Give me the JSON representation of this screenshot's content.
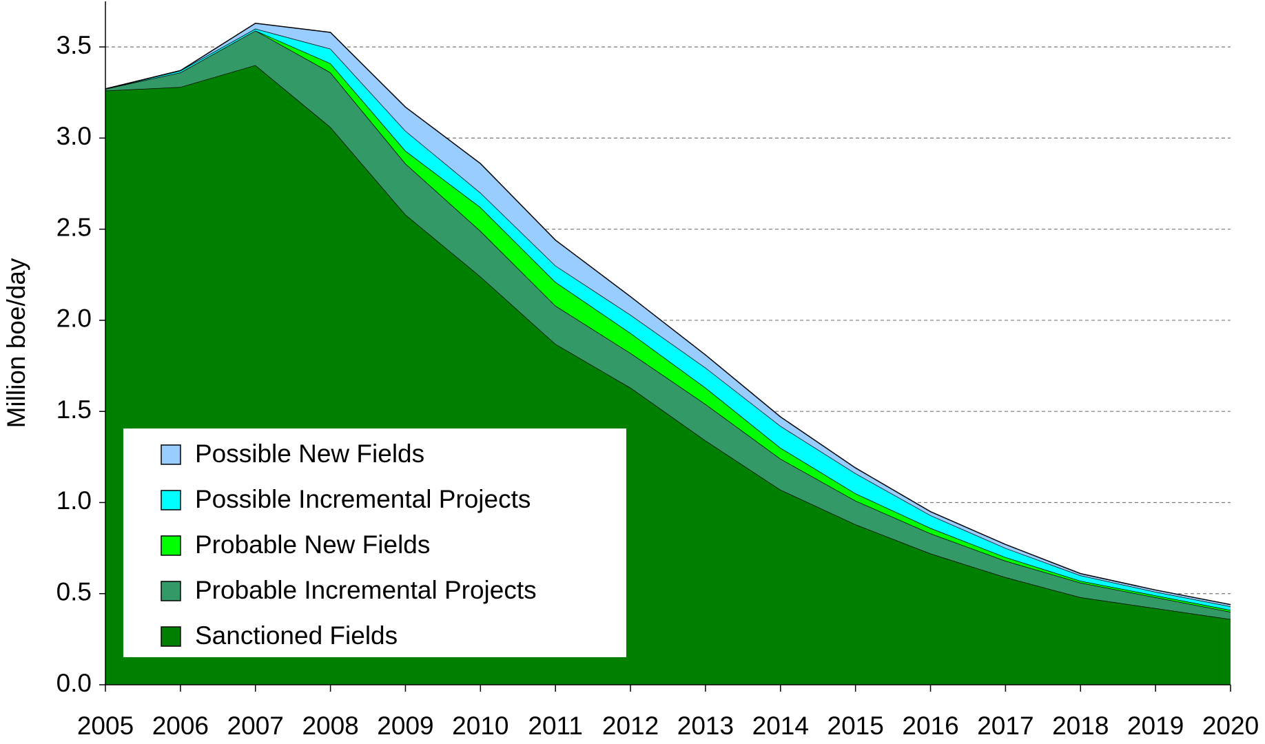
{
  "chart_data": {
    "type": "stacked_area",
    "y_label": "Million boe/day",
    "categories": [
      "2005",
      "2006",
      "2007",
      "2008",
      "2009",
      "2010",
      "2011",
      "2012",
      "2013",
      "2014",
      "2015",
      "2016",
      "2017",
      "2018",
      "2019",
      "2020"
    ],
    "series": [
      {
        "name": "Sanctioned Fields",
        "color": "#008000",
        "values": [
          3.26,
          3.28,
          3.4,
          3.06,
          2.58,
          2.24,
          1.87,
          1.63,
          1.34,
          1.07,
          0.88,
          0.72,
          0.59,
          0.48,
          0.42,
          0.36
        ]
      },
      {
        "name": "Probable Incremental Projects",
        "color": "#339966",
        "values": [
          0.01,
          0.08,
          0.19,
          0.3,
          0.28,
          0.25,
          0.21,
          0.19,
          0.2,
          0.17,
          0.13,
          0.11,
          0.09,
          0.08,
          0.06,
          0.04
        ]
      },
      {
        "name": "Probable New Fields",
        "color": "#00ff00",
        "values": [
          0,
          0,
          0,
          0.05,
          0.07,
          0.13,
          0.13,
          0.11,
          0.09,
          0.06,
          0.04,
          0.03,
          0.02,
          0.01,
          0.01,
          0.01
        ]
      },
      {
        "name": "Possible Incremental Projects",
        "color": "#00ffff",
        "values": [
          0,
          0.01,
          0.01,
          0.08,
          0.11,
          0.08,
          0.09,
          0.1,
          0.11,
          0.12,
          0.11,
          0.07,
          0.05,
          0.03,
          0.02,
          0.02
        ]
      },
      {
        "name": "Possible New Fields",
        "color": "#99ccff",
        "values": [
          0,
          0,
          0.03,
          0.09,
          0.13,
          0.16,
          0.14,
          0.1,
          0.07,
          0.05,
          0.03,
          0.02,
          0.02,
          0.01,
          0.01,
          0.01
        ]
      }
    ],
    "ylim": [
      0,
      3.75
    ],
    "yticks": [
      {
        "value": 0,
        "label": "0.0"
      },
      0.5,
      {
        "value": 1,
        "label": "1.0"
      },
      1.5,
      {
        "value": 2,
        "label": "2.0"
      },
      2.5,
      {
        "value": 3,
        "label": "3.0"
      },
      3.5
    ],
    "grid": true,
    "legend": "lower left"
  }
}
